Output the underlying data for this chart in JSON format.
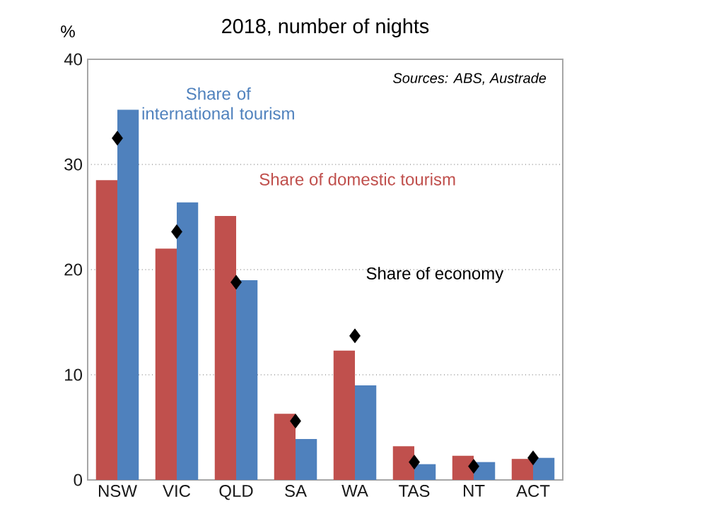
{
  "chart_data": {
    "type": "bar",
    "title": "2018, number of nights",
    "ylabel": "%",
    "categories": [
      "NSW",
      "VIC",
      "QLD",
      "SA",
      "WA",
      "TAS",
      "NT",
      "ACT"
    ],
    "series": [
      {
        "name": "Share of domestic tourism",
        "color": "#c0504d",
        "values": [
          28.5,
          22,
          25.1,
          6.3,
          12.3,
          3.2,
          2.3,
          2.0
        ]
      },
      {
        "name": "Share of international tourism",
        "color": "#4f81bd",
        "values": [
          35.2,
          26.4,
          19,
          3.9,
          9.0,
          1.5,
          1.7,
          2.1
        ]
      },
      {
        "name": "Share of economy",
        "type": "scatter",
        "marker": "diamond",
        "color": "#000000",
        "values": [
          32.5,
          23.6,
          18.8,
          5.6,
          13.7,
          1.7,
          1.3,
          2.1
        ]
      }
    ],
    "ylim": [
      0,
      40
    ],
    "yticks": [
      0,
      10,
      20,
      30,
      40
    ],
    "grid": "y",
    "annotations": [
      "Sources: ABS, Austrade"
    ]
  }
}
